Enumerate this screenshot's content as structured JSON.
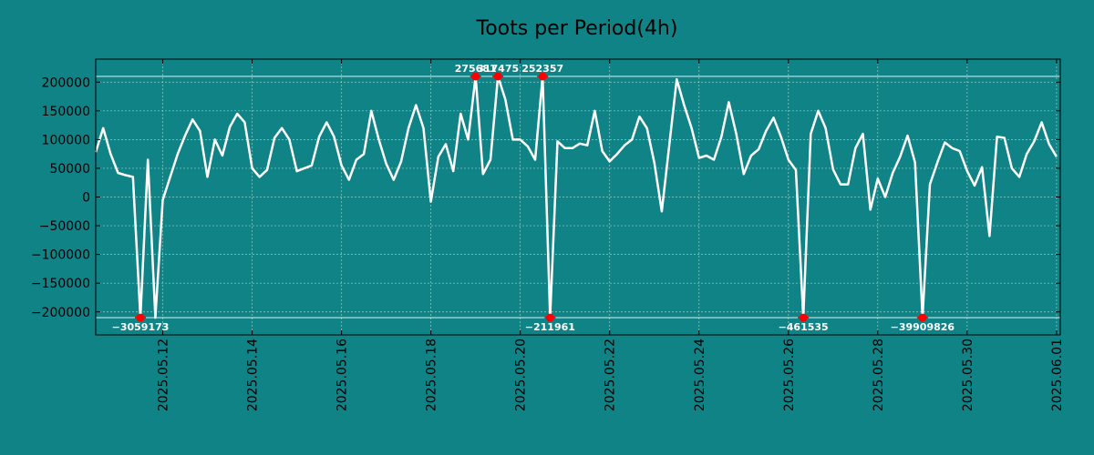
{
  "chart_data": {
    "type": "line",
    "title": "Toots per Period(4h)",
    "xlabel": "",
    "ylabel": "",
    "xlim": [
      "2025-05-10T12:00",
      "2025-06-01T02:00"
    ],
    "ylim": [
      -240000,
      240000
    ],
    "clip_range": [
      -210000,
      210000
    ],
    "grid": true,
    "colors": {
      "background": "#108387",
      "line": "#ffffff",
      "marker": "#ff0000",
      "grid": "#8fd0c8"
    },
    "yticks": [
      {
        "value": 200000,
        "label": "200000"
      },
      {
        "value": 150000,
        "label": "150000"
      },
      {
        "value": 100000,
        "label": "100000"
      },
      {
        "value": 50000,
        "label": "50000"
      },
      {
        "value": 0,
        "label": "0"
      },
      {
        "value": -50000,
        "label": "−50000"
      },
      {
        "value": -100000,
        "label": "−100000"
      },
      {
        "value": -150000,
        "label": "−150000"
      },
      {
        "value": -200000,
        "label": "−200000"
      }
    ],
    "xticks": [
      {
        "value": "2025-05-12",
        "label": "2025.05.12"
      },
      {
        "value": "2025-05-14",
        "label": "2025.05.14"
      },
      {
        "value": "2025-05-16",
        "label": "2025.05.16"
      },
      {
        "value": "2025-05-18",
        "label": "2025.05.18"
      },
      {
        "value": "2025-05-20",
        "label": "2025.05.20"
      },
      {
        "value": "2025-05-22",
        "label": "2025.05.22"
      },
      {
        "value": "2025-05-24",
        "label": "2025.05.24"
      },
      {
        "value": "2025-05-26",
        "label": "2025.05.26"
      },
      {
        "value": "2025-05-28",
        "label": "2025.05.28"
      },
      {
        "value": "2025-05-30",
        "label": "2025.05.30"
      },
      {
        "value": "2025-06-01",
        "label": "2025.06.01"
      }
    ],
    "series": [
      {
        "points": [
          [
            "2025-05-10T12:00",
            78000
          ],
          [
            "2025-05-10T16:00",
            120000
          ],
          [
            "2025-05-10T20:00",
            75000
          ],
          [
            "2025-05-11T00:00",
            42000
          ],
          [
            "2025-05-11T04:00",
            38000
          ],
          [
            "2025-05-11T08:00",
            35000
          ],
          [
            "2025-05-11T12:00",
            -210000
          ],
          [
            "2025-05-11T16:00",
            65000
          ],
          [
            "2025-05-11T20:00",
            -210000
          ],
          [
            "2025-05-12T00:00",
            -5000
          ],
          [
            "2025-05-12T04:00",
            35000
          ],
          [
            "2025-05-12T08:00",
            75000
          ],
          [
            "2025-05-12T12:00",
            107000
          ],
          [
            "2025-05-12T16:00",
            135000
          ],
          [
            "2025-05-12T20:00",
            115000
          ],
          [
            "2025-05-13T00:00",
            35000
          ],
          [
            "2025-05-13T04:00",
            100000
          ],
          [
            "2025-05-13T08:00",
            72000
          ],
          [
            "2025-05-13T12:00",
            122000
          ],
          [
            "2025-05-13T16:00",
            145000
          ],
          [
            "2025-05-13T20:00",
            130000
          ],
          [
            "2025-05-14T00:00",
            50000
          ],
          [
            "2025-05-14T04:00",
            35000
          ],
          [
            "2025-05-14T08:00",
            47000
          ],
          [
            "2025-05-14T12:00",
            103000
          ],
          [
            "2025-05-14T16:00",
            120000
          ],
          [
            "2025-05-14T20:00",
            100000
          ],
          [
            "2025-05-15T00:00",
            45000
          ],
          [
            "2025-05-15T04:00",
            50000
          ],
          [
            "2025-05-15T08:00",
            55000
          ],
          [
            "2025-05-15T12:00",
            105000
          ],
          [
            "2025-05-15T16:00",
            130000
          ],
          [
            "2025-05-15T20:00",
            105000
          ],
          [
            "2025-05-16T00:00",
            55000
          ],
          [
            "2025-05-16T04:00",
            30000
          ],
          [
            "2025-05-16T08:00",
            65000
          ],
          [
            "2025-05-16T12:00",
            75000
          ],
          [
            "2025-05-16T16:00",
            150000
          ],
          [
            "2025-05-16T20:00",
            100000
          ],
          [
            "2025-05-17T00:00",
            58000
          ],
          [
            "2025-05-17T04:00",
            30000
          ],
          [
            "2025-05-17T08:00",
            62000
          ],
          [
            "2025-05-17T12:00",
            120000
          ],
          [
            "2025-05-17T16:00",
            160000
          ],
          [
            "2025-05-17T20:00",
            120000
          ],
          [
            "2025-05-18T00:00",
            -8000
          ],
          [
            "2025-05-18T04:00",
            70000
          ],
          [
            "2025-05-18T08:00",
            92000
          ],
          [
            "2025-05-18T12:00",
            45000
          ],
          [
            "2025-05-18T16:00",
            145000
          ],
          [
            "2025-05-18T20:00",
            100000
          ],
          [
            "2025-05-19T00:00",
            210000
          ],
          [
            "2025-05-19T04:00",
            40000
          ],
          [
            "2025-05-19T08:00",
            65000
          ],
          [
            "2025-05-19T12:00",
            210000
          ],
          [
            "2025-05-19T16:00",
            170000
          ],
          [
            "2025-05-19T20:00",
            100000
          ],
          [
            "2025-05-20T00:00",
            100000
          ],
          [
            "2025-05-20T04:00",
            88000
          ],
          [
            "2025-05-20T08:00",
            65000
          ],
          [
            "2025-05-20T12:00",
            210000
          ],
          [
            "2025-05-20T16:00",
            -210000
          ],
          [
            "2025-05-20T20:00",
            97000
          ],
          [
            "2025-05-21T00:00",
            85000
          ],
          [
            "2025-05-21T04:00",
            85000
          ],
          [
            "2025-05-21T08:00",
            93000
          ],
          [
            "2025-05-21T12:00",
            90000
          ],
          [
            "2025-05-21T16:00",
            150000
          ],
          [
            "2025-05-21T20:00",
            80000
          ],
          [
            "2025-05-22T00:00",
            62000
          ],
          [
            "2025-05-22T04:00",
            75000
          ],
          [
            "2025-05-22T08:00",
            90000
          ],
          [
            "2025-05-22T12:00",
            100000
          ],
          [
            "2025-05-22T16:00",
            140000
          ],
          [
            "2025-05-22T20:00",
            120000
          ],
          [
            "2025-05-23T00:00",
            60000
          ],
          [
            "2025-05-23T04:00",
            -25000
          ],
          [
            "2025-05-23T08:00",
            90000
          ],
          [
            "2025-05-23T12:00",
            205000
          ],
          [
            "2025-05-23T16:00",
            160000
          ],
          [
            "2025-05-23T20:00",
            120000
          ],
          [
            "2025-05-24T00:00",
            68000
          ],
          [
            "2025-05-24T04:00",
            72000
          ],
          [
            "2025-05-24T08:00",
            65000
          ],
          [
            "2025-05-24T12:00",
            105000
          ],
          [
            "2025-05-24T16:00",
            165000
          ],
          [
            "2025-05-24T20:00",
            110000
          ],
          [
            "2025-05-25T00:00",
            40000
          ],
          [
            "2025-05-25T04:00",
            72000
          ],
          [
            "2025-05-25T08:00",
            83000
          ],
          [
            "2025-05-25T12:00",
            115000
          ],
          [
            "2025-05-25T16:00",
            138000
          ],
          [
            "2025-05-25T20:00",
            105000
          ],
          [
            "2025-05-26T00:00",
            65000
          ],
          [
            "2025-05-26T04:00",
            47000
          ],
          [
            "2025-05-26T08:00",
            -210000
          ],
          [
            "2025-05-26T12:00",
            110000
          ],
          [
            "2025-05-26T16:00",
            150000
          ],
          [
            "2025-05-26T20:00",
            120000
          ],
          [
            "2025-05-27T00:00",
            48000
          ],
          [
            "2025-05-27T04:00",
            22000
          ],
          [
            "2025-05-27T08:00",
            22000
          ],
          [
            "2025-05-27T12:00",
            85000
          ],
          [
            "2025-05-27T16:00",
            110000
          ],
          [
            "2025-05-27T20:00",
            -22000
          ],
          [
            "2025-05-28T00:00",
            32000
          ],
          [
            "2025-05-28T04:00",
            0
          ],
          [
            "2025-05-28T08:00",
            42000
          ],
          [
            "2025-05-28T12:00",
            70000
          ],
          [
            "2025-05-28T16:00",
            107000
          ],
          [
            "2025-05-28T20:00",
            60000
          ],
          [
            "2025-05-29T00:00",
            -210000
          ],
          [
            "2025-05-29T04:00",
            22000
          ],
          [
            "2025-05-29T08:00",
            60000
          ],
          [
            "2025-05-29T12:00",
            95000
          ],
          [
            "2025-05-29T16:00",
            85000
          ],
          [
            "2025-05-29T20:00",
            80000
          ],
          [
            "2025-05-30T00:00",
            45000
          ],
          [
            "2025-05-30T04:00",
            20000
          ],
          [
            "2025-05-30T08:00",
            52000
          ],
          [
            "2025-05-30T12:00",
            -68000
          ],
          [
            "2025-05-30T16:00",
            105000
          ],
          [
            "2025-05-30T20:00",
            103000
          ],
          [
            "2025-05-31T00:00",
            50000
          ],
          [
            "2025-05-31T04:00",
            35000
          ],
          [
            "2025-05-31T08:00",
            75000
          ],
          [
            "2025-05-31T12:00",
            97000
          ],
          [
            "2025-05-31T16:00",
            130000
          ],
          [
            "2025-05-31T20:00",
            92000
          ],
          [
            "2025-06-01T00:00",
            70000
          ]
        ]
      }
    ],
    "annotations": [
      {
        "x": "2025-05-11T12:00",
        "y": -210000,
        "label": "−3059173",
        "position": "below"
      },
      {
        "x": "2025-05-19T00:00",
        "y": 210000,
        "label": "275681",
        "position": "above"
      },
      {
        "x": "2025-05-19T12:00",
        "y": 210000,
        "label": "317475",
        "position": "above"
      },
      {
        "x": "2025-05-20T12:00",
        "y": 210000,
        "label": "252357",
        "position": "above"
      },
      {
        "x": "2025-05-20T16:00",
        "y": -210000,
        "label": "−211961",
        "position": "below"
      },
      {
        "x": "2025-05-26T08:00",
        "y": -210000,
        "label": "−461535",
        "position": "below"
      },
      {
        "x": "2025-05-29T00:00",
        "y": -210000,
        "label": "−39909826",
        "position": "below"
      }
    ]
  }
}
